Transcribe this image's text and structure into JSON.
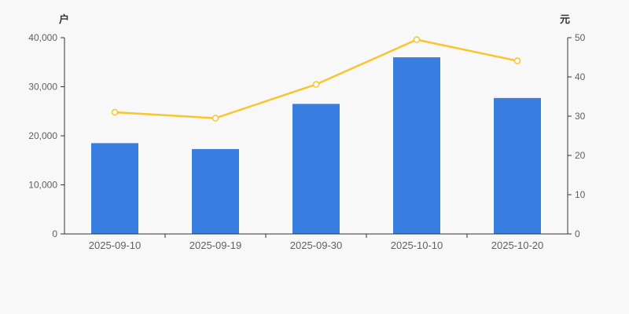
{
  "chart_data": {
    "type": "bar+line",
    "title": "",
    "categories": [
      "2025-09-10",
      "2025-09-19",
      "2025-09-30",
      "2025-10-10",
      "2025-10-20"
    ],
    "series": [
      {
        "name": "户",
        "type": "bar",
        "axis": "left",
        "values": [
          18500,
          17300,
          26500,
          36000,
          27700
        ]
      },
      {
        "name": "元",
        "type": "line",
        "axis": "right",
        "values": [
          31,
          29.5,
          38.1,
          49.5,
          44.1
        ]
      }
    ],
    "left_axis": {
      "label": "户",
      "min": 0,
      "max": 40000,
      "tick_labels": [
        "0",
        "10,000",
        "20,000",
        "30,000",
        "40,000"
      ]
    },
    "right_axis": {
      "label": "元",
      "min": 0,
      "max": 50,
      "tick_labels": [
        "0",
        "10",
        "20",
        "30",
        "40",
        "50"
      ]
    },
    "legend": false,
    "grid": false,
    "colors": {
      "background": "#f8f8f8",
      "bar": "#377ee0",
      "line": "#fbc32c",
      "marker_fill": "#ffffff",
      "axis_line": "#333333",
      "tick_text": "#5f5f5f"
    }
  }
}
